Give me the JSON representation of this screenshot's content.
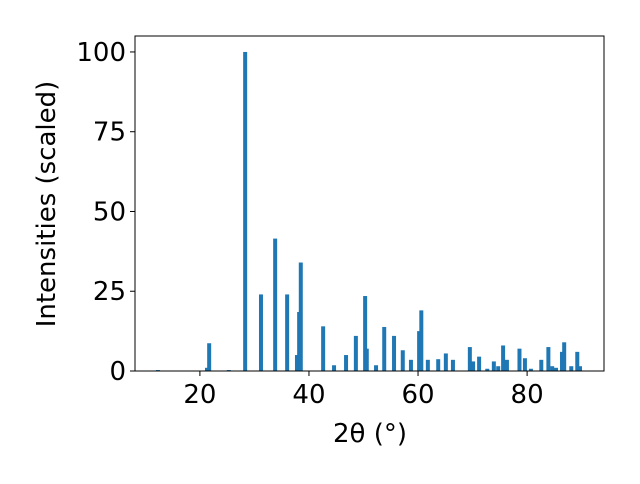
{
  "chart_data": {
    "type": "bar",
    "x_label": "2θ (°)",
    "y_label": "Intensities (scaled)",
    "color": "#1f77b4",
    "x": [
      12.3,
      21.3,
      21.7,
      25.3,
      28.3,
      31.2,
      33.8,
      36.0,
      37.8,
      38.2,
      38.5,
      42.6,
      44.6,
      46.8,
      48.6,
      50.3,
      50.6,
      52.3,
      53.8,
      55.6,
      57.2,
      58.7,
      60.2,
      60.6,
      61.8,
      63.7,
      65.1,
      66.4,
      69.5,
      70.1,
      71.2,
      72.7,
      73.9,
      74.7,
      75.6,
      76.3,
      78.6,
      79.6,
      80.7,
      82.6,
      83.9,
      84.6,
      85.3,
      86.4,
      86.8,
      88.1,
      89.2,
      89.7
    ],
    "values": [
      0.3,
      1,
      8.7,
      0.3,
      100,
      24,
      41.5,
      24,
      5,
      18.5,
      34,
      14,
      1.8,
      5,
      11,
      23.5,
      7,
      1.8,
      13.8,
      11,
      6.5,
      3.5,
      12.5,
      19,
      3.5,
      3.7,
      5.5,
      3.5,
      7.5,
      3,
      4.5,
      0.7,
      3,
      1.5,
      8,
      3.5,
      7,
      4,
      0.7,
      3.5,
      7.5,
      1.5,
      1,
      6,
      9,
      1.5,
      6,
      1.5
    ],
    "xlim": [
      8.1,
      94.1
    ],
    "ylim": [
      0,
      105
    ],
    "xticks": [
      20,
      40,
      60,
      80
    ],
    "yticks": [
      0,
      25,
      50,
      75,
      100
    ],
    "grid": false
  }
}
